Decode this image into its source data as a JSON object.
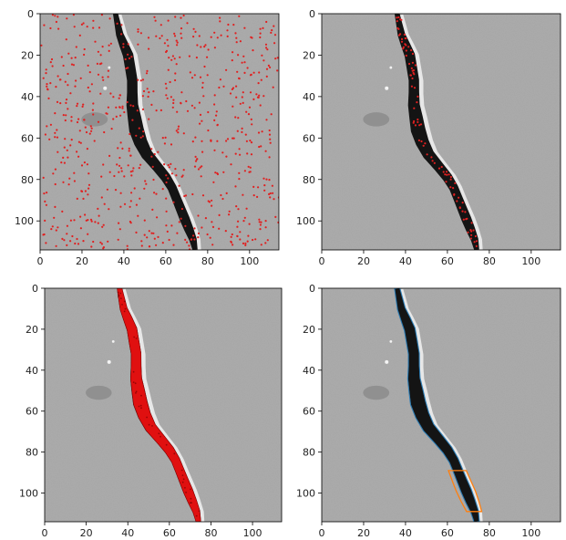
{
  "chart_data": [
    {
      "type": "heatmap",
      "title": "",
      "xlabel": "",
      "ylabel": "",
      "xlim": [
        0,
        114
      ],
      "ylim": [
        114,
        0
      ],
      "x_ticks": [
        0,
        20,
        40,
        60,
        80,
        100
      ],
      "y_ticks": [
        0,
        20,
        40,
        60,
        80,
        100
      ],
      "overlay": {
        "kind": "scatter",
        "color": "#e02020",
        "density": "dense",
        "points": 700
      }
    },
    {
      "type": "heatmap",
      "title": "",
      "xlabel": "",
      "ylabel": "",
      "xlim": [
        0,
        114
      ],
      "ylim": [
        114,
        0
      ],
      "x_ticks": [
        0,
        20,
        40,
        60,
        80,
        100
      ],
      "y_ticks": [
        0,
        20,
        40,
        60,
        80,
        100
      ],
      "overlay": {
        "kind": "scatter-on-crack",
        "color": "#e02020",
        "points": 90
      }
    },
    {
      "type": "heatmap",
      "title": "",
      "xlabel": "",
      "ylabel": "",
      "xlim": [
        0,
        114
      ],
      "ylim": [
        114,
        0
      ],
      "x_ticks": [
        0,
        20,
        40,
        60,
        80,
        100
      ],
      "y_ticks": [
        0,
        20,
        40,
        60,
        80,
        100
      ],
      "overlay": {
        "kind": "filled-crack",
        "color": "#e01010"
      }
    },
    {
      "type": "heatmap",
      "title": "",
      "xlabel": "",
      "ylabel": "",
      "xlim": [
        0,
        114
      ],
      "ylim": [
        114,
        0
      ],
      "x_ticks": [
        0,
        20,
        40,
        60,
        80,
        100
      ],
      "y_ticks": [
        0,
        20,
        40,
        60,
        80,
        100
      ],
      "overlay": {
        "kind": "contours",
        "colors": [
          "#1f77b4",
          "#ff7f0e"
        ]
      }
    }
  ],
  "crack_path": [
    [
      36,
      0
    ],
    [
      37,
      5
    ],
    [
      38,
      10
    ],
    [
      40,
      15
    ],
    [
      42,
      20
    ],
    [
      43,
      26
    ],
    [
      44,
      32
    ],
    [
      44,
      38
    ],
    [
      44,
      44
    ],
    [
      45,
      50
    ],
    [
      46,
      56
    ],
    [
      48,
      62
    ],
    [
      51,
      68
    ],
    [
      56,
      74
    ],
    [
      60,
      79
    ],
    [
      63,
      84
    ],
    [
      65,
      89
    ],
    [
      67,
      94
    ],
    [
      69,
      99
    ],
    [
      71,
      104
    ],
    [
      73,
      109
    ],
    [
      74,
      114
    ]
  ],
  "crack_half_width": [
    1.2,
    1.5,
    1.8,
    2.2,
    2.5,
    2.5,
    2.5,
    2.5,
    2.8,
    3.2,
    3.5,
    3.2,
    2.8,
    2.5,
    2.4,
    2.2,
    2.2,
    2.3,
    2.4,
    2.2,
    1.8,
    1.2
  ],
  "background_color": "#a6a6a6",
  "crack_color": "#141414",
  "highlight_color": "#f2f2f2"
}
